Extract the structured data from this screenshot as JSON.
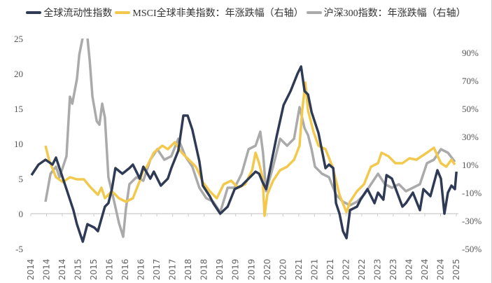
{
  "chart_data": {
    "type": "line",
    "title": "",
    "xlabel": "",
    "ylabel_left": "",
    "ylabel_right": "",
    "x_tick_labels": [
      "2014",
      "2014",
      "2014",
      "2015",
      "2015",
      "2016",
      "2016",
      "2016",
      "2017",
      "2017",
      "2018",
      "2018",
      "2019",
      "2019",
      "2019",
      "2020",
      "2020",
      "2021",
      "2021",
      "2021",
      "2022",
      "2022",
      "2023",
      "2023",
      "2024",
      "2024",
      "2024",
      "2025"
    ],
    "xlim": [
      2014.0,
      2025.0
    ],
    "y_left": {
      "ylim": [
        -5,
        25
      ],
      "ticks": [
        "-5",
        "0",
        "5",
        "10",
        "15",
        "20",
        "25"
      ],
      "tick_values": [
        -5,
        0,
        5,
        10,
        15,
        20,
        25
      ]
    },
    "y_right": {
      "ylim": [
        -50,
        100
      ],
      "ticks": [
        "-50%",
        "-30%",
        "-10%",
        "10%",
        "30%",
        "50%",
        "70%",
        "90%"
      ],
      "tick_values": [
        -50,
        -30,
        -10,
        10,
        30,
        50,
        70,
        90
      ]
    },
    "grid": false,
    "legend_placement": "top",
    "series": [
      {
        "name": "全球流动性指数",
        "axis": "left",
        "color": "#2f3b55",
        "points": [
          [
            2014.0,
            5.5
          ],
          [
            2014.18,
            7.0
          ],
          [
            2014.36,
            7.7
          ],
          [
            2014.54,
            7.0
          ],
          [
            2014.63,
            8.0
          ],
          [
            2014.72,
            6.5
          ],
          [
            2014.9,
            3.5
          ],
          [
            2015.08,
            0.5
          ],
          [
            2015.17,
            -1.5
          ],
          [
            2015.26,
            -3.0
          ],
          [
            2015.32,
            -4.0
          ],
          [
            2015.44,
            -1.5
          ],
          [
            2015.62,
            -2.0
          ],
          [
            2015.71,
            -2.5
          ],
          [
            2015.89,
            1.0
          ],
          [
            2015.98,
            1.5
          ],
          [
            2016.07,
            3.5
          ],
          [
            2016.16,
            6.5
          ],
          [
            2016.34,
            5.7
          ],
          [
            2016.52,
            6.5
          ],
          [
            2016.61,
            7.0
          ],
          [
            2016.79,
            5.0
          ],
          [
            2016.88,
            6.7
          ],
          [
            2017.06,
            5.0
          ],
          [
            2017.15,
            6.0
          ],
          [
            2017.33,
            4.0
          ],
          [
            2017.51,
            5.0
          ],
          [
            2017.6,
            6.5
          ],
          [
            2017.78,
            9.0
          ],
          [
            2017.91,
            14.0
          ],
          [
            2018.02,
            14.0
          ],
          [
            2018.14,
            12.0
          ],
          [
            2018.32,
            7.5
          ],
          [
            2018.41,
            4.0
          ],
          [
            2018.59,
            2.5
          ],
          [
            2018.68,
            1.5
          ],
          [
            2018.86,
            0.0
          ],
          [
            2019.05,
            1.0
          ],
          [
            2019.23,
            3.5
          ],
          [
            2019.41,
            4.0
          ],
          [
            2019.68,
            5.5
          ],
          [
            2019.77,
            6.0
          ],
          [
            2019.86,
            5.7
          ],
          [
            2019.95,
            4.5
          ],
          [
            2020.04,
            3.5
          ],
          [
            2020.13,
            6.0
          ],
          [
            2020.31,
            11.0
          ],
          [
            2020.49,
            15.5
          ],
          [
            2020.67,
            17.5
          ],
          [
            2020.85,
            20.0
          ],
          [
            2020.94,
            21.0
          ],
          [
            2021.03,
            17.5
          ],
          [
            2021.12,
            17.0
          ],
          [
            2021.21,
            14.5
          ],
          [
            2021.39,
            11.5
          ],
          [
            2021.48,
            9.0
          ],
          [
            2021.57,
            6.5
          ],
          [
            2021.66,
            7.0
          ],
          [
            2021.77,
            6.5
          ],
          [
            2021.84,
            1.5
          ],
          [
            2021.93,
            0.0
          ],
          [
            2022.02,
            -2.5
          ],
          [
            2022.11,
            -3.5
          ],
          [
            2022.2,
            0.5
          ],
          [
            2022.38,
            1.0
          ],
          [
            2022.47,
            2.0
          ],
          [
            2022.65,
            3.5
          ],
          [
            2022.83,
            1.5
          ],
          [
            2022.92,
            3.0
          ],
          [
            2023.06,
            2.0
          ],
          [
            2023.14,
            5.5
          ],
          [
            2023.28,
            5.0
          ],
          [
            2023.55,
            1.0
          ],
          [
            2023.64,
            1.5
          ],
          [
            2023.82,
            3.0
          ],
          [
            2024.0,
            0.5
          ],
          [
            2024.09,
            3.5
          ],
          [
            2024.27,
            2.5
          ],
          [
            2024.45,
            6.2
          ],
          [
            2024.54,
            5.0
          ],
          [
            2024.63,
            0.0
          ],
          [
            2024.72,
            3.0
          ],
          [
            2024.81,
            4.0
          ],
          [
            2024.9,
            3.5
          ],
          [
            2024.94,
            6.0
          ]
        ]
      },
      {
        "name": "MSCI全球非美指数：年涨跌幅（右轴）",
        "axis": "right",
        "color": "#f2c94c",
        "points": [
          [
            2014.36,
            23.5
          ],
          [
            2014.45,
            13.5
          ],
          [
            2014.63,
            1
          ],
          [
            2014.81,
            -2.5
          ],
          [
            2014.99,
            1
          ],
          [
            2015.17,
            -0.5
          ],
          [
            2015.35,
            -0.5
          ],
          [
            2015.53,
            -6.5
          ],
          [
            2015.71,
            -11.5
          ],
          [
            2015.8,
            -6.5
          ],
          [
            2015.89,
            -14
          ],
          [
            2016.07,
            -9
          ],
          [
            2016.25,
            -14
          ],
          [
            2016.43,
            -16.5
          ],
          [
            2016.61,
            -14
          ],
          [
            2016.79,
            -1.5
          ],
          [
            2016.88,
            6
          ],
          [
            2016.97,
            8.5
          ],
          [
            2017.15,
            18.5
          ],
          [
            2017.37,
            23.5
          ],
          [
            2017.51,
            21
          ],
          [
            2017.69,
            26
          ],
          [
            2017.87,
            18.5
          ],
          [
            2018.05,
            13.5
          ],
          [
            2018.23,
            8.5
          ],
          [
            2018.32,
            3.5
          ],
          [
            2018.41,
            -2.5
          ],
          [
            2018.59,
            -9
          ],
          [
            2018.77,
            -14
          ],
          [
            2018.95,
            -4
          ],
          [
            2019.14,
            -1.5
          ],
          [
            2019.32,
            -6.5
          ],
          [
            2019.5,
            -4
          ],
          [
            2019.68,
            6
          ],
          [
            2019.77,
            18.5
          ],
          [
            2019.86,
            11
          ],
          [
            2019.95,
            1
          ],
          [
            2020.0,
            -26.5
          ],
          [
            2020.07,
            -11.5
          ],
          [
            2020.22,
            -1.5
          ],
          [
            2020.4,
            6
          ],
          [
            2020.58,
            8.5
          ],
          [
            2020.76,
            13.5
          ],
          [
            2020.9,
            23.5
          ],
          [
            2020.97,
            48.5
          ],
          [
            2021.05,
            68.5
          ],
          [
            2021.12,
            48.5
          ],
          [
            2021.26,
            33.5
          ],
          [
            2021.39,
            23.5
          ],
          [
            2021.57,
            21
          ],
          [
            2021.75,
            8.5
          ],
          [
            2021.93,
            -11.5
          ],
          [
            2022.11,
            -24
          ],
          [
            2022.2,
            -16.5
          ],
          [
            2022.38,
            -9
          ],
          [
            2022.56,
            -4
          ],
          [
            2022.74,
            8.5
          ],
          [
            2022.92,
            11
          ],
          [
            2023.01,
            18.5
          ],
          [
            2023.19,
            16
          ],
          [
            2023.37,
            11
          ],
          [
            2023.55,
            11
          ],
          [
            2023.73,
            14.5
          ],
          [
            2023.91,
            13.5
          ],
          [
            2024.18,
            18.5
          ],
          [
            2024.36,
            22
          ],
          [
            2024.54,
            11
          ],
          [
            2024.68,
            8.5
          ],
          [
            2024.81,
            13.5
          ],
          [
            2024.9,
            10
          ]
        ]
      },
      {
        "name": "沪深300指数：年涨跌幅（右轴）",
        "axis": "right",
        "color": "#aaaaaa",
        "points": [
          [
            2014.36,
            -16.5
          ],
          [
            2014.49,
            3.5
          ],
          [
            2014.63,
            8.5
          ],
          [
            2014.72,
            1
          ],
          [
            2014.9,
            16
          ],
          [
            2014.99,
            58.5
          ],
          [
            2015.05,
            53.5
          ],
          [
            2015.17,
            71
          ],
          [
            2015.23,
            88.5
          ],
          [
            2015.32,
            101
          ],
          [
            2015.44,
            101
          ],
          [
            2015.5,
            83.5
          ],
          [
            2015.57,
            58.5
          ],
          [
            2015.68,
            41
          ],
          [
            2015.75,
            38.5
          ],
          [
            2015.82,
            53.5
          ],
          [
            2015.89,
            43.5
          ],
          [
            2015.98,
            1
          ],
          [
            2016.13,
            -16.5
          ],
          [
            2016.25,
            -31.5
          ],
          [
            2016.36,
            -41.5
          ],
          [
            2016.43,
            -21.5
          ],
          [
            2016.52,
            -4
          ],
          [
            2016.7,
            1
          ],
          [
            2016.88,
            -1.5
          ],
          [
            2017.06,
            13.5
          ],
          [
            2017.24,
            21
          ],
          [
            2017.42,
            13.5
          ],
          [
            2017.6,
            16
          ],
          [
            2017.78,
            28.5
          ],
          [
            2017.96,
            16
          ],
          [
            2018.14,
            8.5
          ],
          [
            2018.32,
            -6.5
          ],
          [
            2018.5,
            -14
          ],
          [
            2018.68,
            -16.5
          ],
          [
            2018.86,
            -24
          ],
          [
            2019.05,
            -6.5
          ],
          [
            2019.23,
            -6.5
          ],
          [
            2019.41,
            3.5
          ],
          [
            2019.59,
            21
          ],
          [
            2019.77,
            23.5
          ],
          [
            2019.89,
            33.5
          ],
          [
            2019.96,
            18.5
          ],
          [
            2020.04,
            -9
          ],
          [
            2020.22,
            8.5
          ],
          [
            2020.4,
            28.5
          ],
          [
            2020.58,
            23.5
          ],
          [
            2020.76,
            28.5
          ],
          [
            2020.9,
            51
          ],
          [
            2021.03,
            36
          ],
          [
            2021.12,
            31
          ],
          [
            2021.21,
            21
          ],
          [
            2021.3,
            8.5
          ],
          [
            2021.48,
            3.5
          ],
          [
            2021.66,
            1
          ],
          [
            2021.84,
            -11.5
          ],
          [
            2022.02,
            -16.5
          ],
          [
            2022.2,
            -19
          ],
          [
            2022.38,
            -16.5
          ],
          [
            2022.56,
            -11.5
          ],
          [
            2022.74,
            -4
          ],
          [
            2022.92,
            3.5
          ],
          [
            2023.1,
            -4
          ],
          [
            2023.28,
            -6.5
          ],
          [
            2023.46,
            -4
          ],
          [
            2023.64,
            -9
          ],
          [
            2023.82,
            -6.5
          ],
          [
            2024.0,
            -4
          ],
          [
            2024.18,
            11
          ],
          [
            2024.36,
            13.5
          ],
          [
            2024.54,
            21
          ],
          [
            2024.72,
            18.5
          ],
          [
            2024.9,
            12
          ]
        ]
      }
    ]
  }
}
